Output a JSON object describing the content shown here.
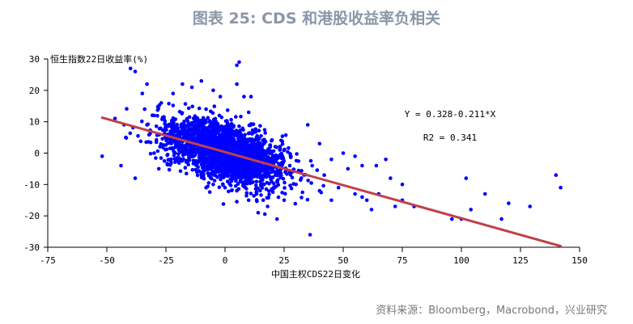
{
  "figure": {
    "title": "图表 25: CDS 和港股收益率负相关",
    "source": "资料来源：Bloomberg，Macrobond，兴业研究"
  },
  "chart_data": {
    "type": "scatter",
    "title": "",
    "xlabel": "中国主权CDS22日变化",
    "ylabel": "恒生指数22日收益率(%)",
    "xlim": [
      -75,
      150
    ],
    "ylim": [
      -30,
      30
    ],
    "xticks": [
      -75,
      -50,
      -25,
      0,
      25,
      50,
      75,
      100,
      125,
      150
    ],
    "yticks": [
      30,
      20,
      10,
      0,
      -10,
      -20,
      -30
    ],
    "grid": false,
    "point_color": "#0000ff",
    "line_color": "#c0404a",
    "fit": {
      "intercept": 0.328,
      "slope": -0.211,
      "x_range": [
        -52,
        142
      ],
      "equation_label": "Y = 0.328-0.211*X",
      "r2_label": "R2 = 0.341"
    },
    "outlier_points": [
      [
        -52,
        -1
      ],
      [
        -40,
        27
      ],
      [
        -38,
        26
      ],
      [
        -35,
        19
      ],
      [
        -33,
        22
      ],
      [
        -42,
        5
      ],
      [
        -44,
        -4
      ],
      [
        -38,
        -8
      ],
      [
        -34,
        14
      ],
      [
        -30,
        12
      ],
      [
        -33,
        9
      ],
      [
        -27,
        16
      ],
      [
        -30,
        0
      ],
      [
        -28,
        -5
      ],
      [
        -18,
        22
      ],
      [
        -14,
        21
      ],
      [
        -10,
        23
      ],
      [
        -5,
        20
      ],
      [
        -2,
        18
      ],
      [
        5,
        28
      ],
      [
        6,
        29
      ],
      [
        5,
        22
      ],
      [
        8,
        18
      ],
      [
        11,
        18
      ],
      [
        10,
        13
      ],
      [
        -8,
        14
      ],
      [
        -22,
        19
      ],
      [
        35,
        9
      ],
      [
        40,
        3
      ],
      [
        45,
        -2
      ],
      [
        50,
        0
      ],
      [
        52,
        -5
      ],
      [
        55,
        -1
      ],
      [
        58,
        -4
      ],
      [
        42,
        -7
      ],
      [
        48,
        -11
      ],
      [
        55,
        -13
      ],
      [
        58,
        -14
      ],
      [
        60,
        -15
      ],
      [
        62,
        -18
      ],
      [
        65,
        -13
      ],
      [
        72,
        -17
      ],
      [
        75,
        -15
      ],
      [
        80,
        -17
      ],
      [
        70,
        -8
      ],
      [
        75,
        -10
      ],
      [
        64,
        -4
      ],
      [
        68,
        -2
      ],
      [
        30,
        -10
      ],
      [
        25,
        -15
      ],
      [
        22,
        -21
      ],
      [
        14,
        -19
      ],
      [
        18,
        -17
      ],
      [
        36,
        -26
      ],
      [
        10,
        -15
      ],
      [
        5,
        -12
      ],
      [
        0,
        -11
      ],
      [
        -5,
        -10
      ],
      [
        -8,
        -11
      ],
      [
        40,
        -12
      ],
      [
        45,
        -15
      ],
      [
        96,
        -21
      ],
      [
        100,
        -21
      ],
      [
        102,
        -8
      ],
      [
        104,
        -18
      ],
      [
        110,
        -13
      ],
      [
        117,
        -21
      ],
      [
        120,
        -16
      ],
      [
        129,
        -17
      ],
      [
        140,
        -7
      ],
      [
        142,
        -11
      ]
    ],
    "cloud": {
      "n": 2200,
      "x_mean": 0,
      "x_sd": 13,
      "y_noise_sd": 4.5,
      "seed": 20250
    }
  }
}
